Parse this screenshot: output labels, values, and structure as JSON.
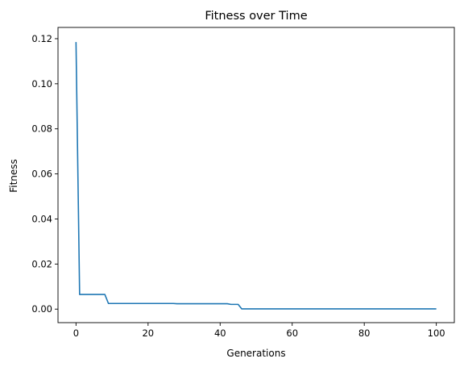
{
  "chart_data": {
    "type": "line",
    "title": "Fitness over Time",
    "xlabel": "Generations",
    "ylabel": "Fitness",
    "xlim": [
      -5,
      105
    ],
    "ylim": [
      -0.006,
      0.125
    ],
    "xticks": [
      0,
      20,
      40,
      60,
      80,
      100
    ],
    "yticks": [
      0.0,
      0.02,
      0.04,
      0.06,
      0.08,
      0.1,
      0.12
    ],
    "xtick_labels": [
      "0",
      "20",
      "40",
      "60",
      "80",
      "100"
    ],
    "ytick_labels": [
      "0.00",
      "0.02",
      "0.04",
      "0.06",
      "0.08",
      "0.10",
      "0.12"
    ],
    "grid": false,
    "line_color": "#1f77b4",
    "series": [
      {
        "points": [
          [
            0,
            0.1185
          ],
          [
            1,
            0.0065
          ],
          [
            8,
            0.0065
          ],
          [
            9,
            0.0025
          ],
          [
            27,
            0.0025
          ],
          [
            28,
            0.0024
          ],
          [
            42,
            0.0024
          ],
          [
            43,
            0.0021
          ],
          [
            45,
            0.0021
          ],
          [
            46,
            0.0001
          ],
          [
            100,
            0.0001
          ]
        ]
      }
    ]
  }
}
